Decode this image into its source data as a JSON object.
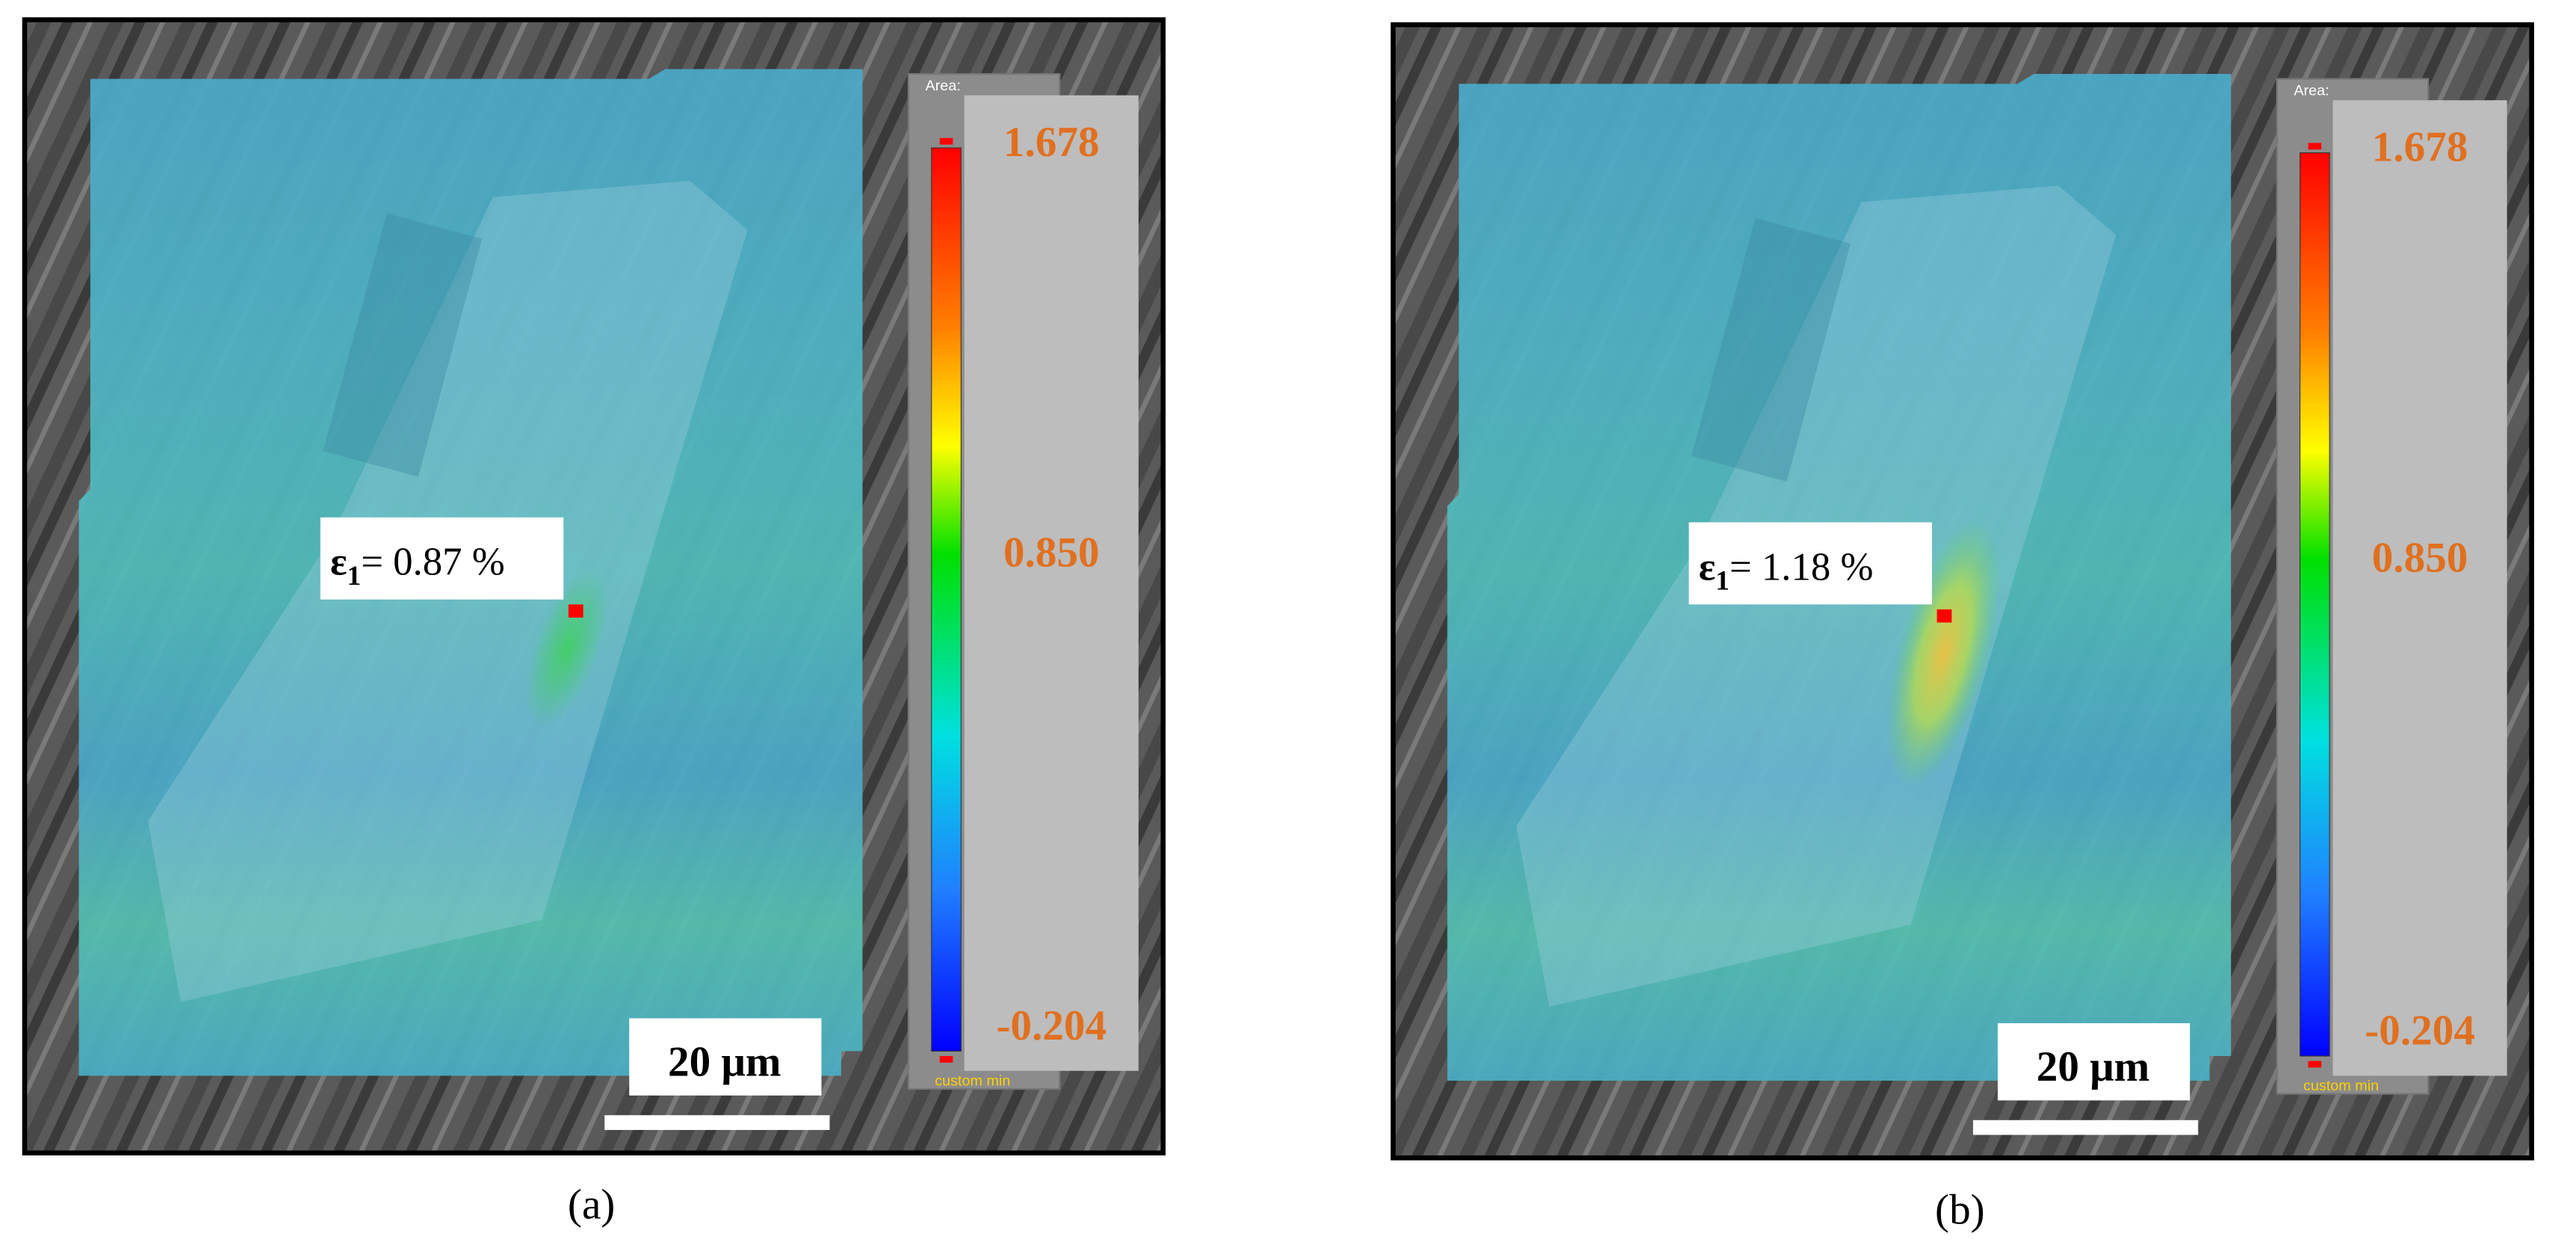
{
  "panels": [
    {
      "caption": "(a)",
      "area_label": "Area:",
      "custom_min": "custom min",
      "colorbar": {
        "max": "1.678",
        "mid": "0.850",
        "min": "-0.204"
      },
      "annotation": {
        "symbol": "ε",
        "subscript": "1",
        "text": "= 0.87 %"
      },
      "scale_bar": "20 μm"
    },
    {
      "caption": "(b)",
      "area_label": "Area:",
      "custom_min": "custom min",
      "colorbar": {
        "max": "1.678",
        "mid": "0.850",
        "min": "-0.204"
      },
      "annotation": {
        "symbol": "ε",
        "subscript": "1",
        "text": "= 1.18 %"
      },
      "scale_bar": "20 μm"
    }
  ]
}
